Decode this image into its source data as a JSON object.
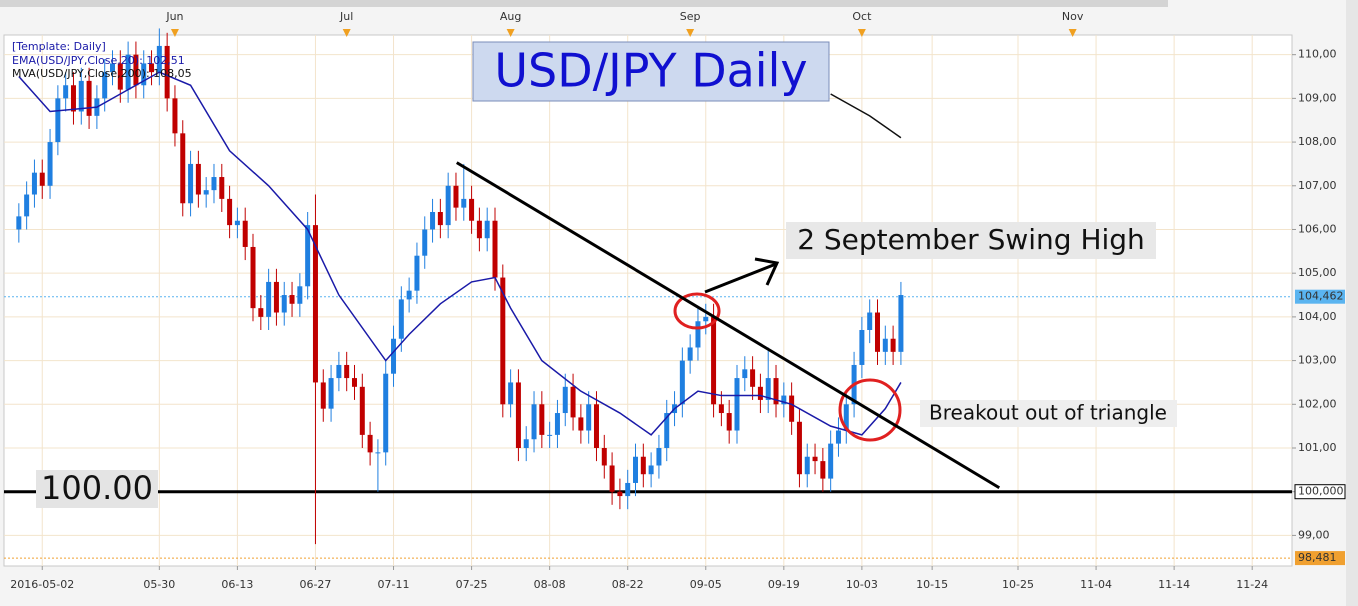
{
  "chart_data": {
    "type": "candlestick",
    "title": "USD/JPY Daily",
    "legend_header": "[Template: Daily]",
    "up_color": "#1f7fe0",
    "down_color": "#c00000",
    "grid": true,
    "xlim": [
      -19.9,
      145.1
    ],
    "ylim": [
      98.3,
      110.45
    ],
    "xticks": [
      {
        "value": -15,
        "label": "2016-05-02"
      },
      {
        "value": 0,
        "label": "05-30"
      },
      {
        "value": 10,
        "label": "06-13"
      },
      {
        "value": 20,
        "label": "06-27"
      },
      {
        "value": 30,
        "label": "07-11"
      },
      {
        "value": 40,
        "label": "07-25"
      },
      {
        "value": 50,
        "label": "08-08"
      },
      {
        "value": 60,
        "label": "08-22"
      },
      {
        "value": 70,
        "label": "09-05"
      },
      {
        "value": 80,
        "label": "09-19"
      },
      {
        "value": 90,
        "label": "10-03"
      },
      {
        "value": 99,
        "label": "10-15"
      },
      {
        "value": 110,
        "label": "10-25"
      },
      {
        "value": 120,
        "label": "11-04"
      },
      {
        "value": 130,
        "label": "11-14"
      },
      {
        "value": 140,
        "label": "11-24"
      }
    ],
    "top_ticks": [
      {
        "value": 2,
        "label": "Jun"
      },
      {
        "value": 24,
        "label": "Jul"
      },
      {
        "value": 45,
        "label": "Aug"
      },
      {
        "value": 68,
        "label": "Sep"
      },
      {
        "value": 90,
        "label": "Oct"
      },
      {
        "value": 117,
        "label": "Nov"
      }
    ],
    "yticks": [
      {
        "value": 99,
        "label": "99,00"
      },
      {
        "value": 100,
        "label": "100,00"
      },
      {
        "value": 101,
        "label": "101,00"
      },
      {
        "value": 102,
        "label": "102,00"
      },
      {
        "value": 103,
        "label": "103,00"
      },
      {
        "value": 104,
        "label": "104,00"
      },
      {
        "value": 105,
        "label": "105,00"
      },
      {
        "value": 106,
        "label": "106,00"
      },
      {
        "value": 107,
        "label": "107,00"
      },
      {
        "value": 108,
        "label": "108,00"
      },
      {
        "value": 109,
        "label": "109,00"
      },
      {
        "value": 110,
        "label": "110,00"
      }
    ],
    "x": [
      -18,
      -17,
      -16,
      -15,
      -14,
      -13,
      -12,
      -11,
      -10,
      -9,
      -8,
      -7,
      -6,
      -5,
      -4,
      -3,
      -2,
      -1,
      0,
      1,
      2,
      3,
      4,
      5,
      6,
      7,
      8,
      9,
      10,
      11,
      12,
      13,
      14,
      15,
      16,
      17,
      18,
      19,
      20,
      21,
      22,
      23,
      24,
      25,
      26,
      27,
      28,
      29,
      30,
      31,
      32,
      33,
      34,
      35,
      36,
      37,
      38,
      39,
      40,
      41,
      42,
      43,
      44,
      45,
      46,
      47,
      48,
      49,
      50,
      51,
      52,
      53,
      54,
      55,
      56,
      57,
      58,
      59,
      60,
      61,
      62,
      63,
      64,
      65,
      66,
      67,
      68,
      69,
      70,
      71,
      72,
      73,
      74,
      75,
      76,
      77,
      78,
      79,
      80,
      81,
      82,
      83,
      84,
      85,
      86,
      87,
      88,
      89,
      90,
      91,
      92,
      93,
      94,
      95
    ],
    "open": [
      106.0,
      106.3,
      106.8,
      107.3,
      107.0,
      108.0,
      109.0,
      109.3,
      108.7,
      109.4,
      108.6,
      109.0,
      109.6,
      109.8,
      109.2,
      110.0,
      109.3,
      109.8,
      109.6,
      110.2,
      109.0,
      108.2,
      106.6,
      107.5,
      106.8,
      106.9,
      107.2,
      106.7,
      106.1,
      106.2,
      105.6,
      104.2,
      104.0,
      104.8,
      104.1,
      104.5,
      104.3,
      104.7,
      106.1,
      102.5,
      101.9,
      102.6,
      102.9,
      102.6,
      102.4,
      101.3,
      100.9,
      100.9,
      102.7,
      103.5,
      104.4,
      104.6,
      105.4,
      106.0,
      106.4,
      106.1,
      107.0,
      106.5,
      106.7,
      106.2,
      105.8,
      106.2,
      104.9,
      102.0,
      102.5,
      101.0,
      101.2,
      102.0,
      101.3,
      101.3,
      101.8,
      102.4,
      101.7,
      101.4,
      102.0,
      101.0,
      100.6,
      100.0,
      99.9,
      100.2,
      100.8,
      100.4,
      100.6,
      101.0,
      101.8,
      102.0,
      103.0,
      103.3,
      103.9,
      104.0,
      102.0,
      101.8,
      101.4,
      102.6,
      102.8,
      102.4,
      102.1,
      102.6,
      102.0,
      102.2,
      101.6,
      100.4,
      100.8,
      100.7,
      100.3,
      101.1,
      101.4,
      102.0,
      102.9,
      103.7,
      104.1,
      103.2,
      103.5,
      103.2
    ],
    "high": [
      106.6,
      107.1,
      107.6,
      107.6,
      108.3,
      109.3,
      109.6,
      109.6,
      109.7,
      109.7,
      109.3,
      109.9,
      110.1,
      110.1,
      110.3,
      110.3,
      110.1,
      110.1,
      110.6,
      110.5,
      109.3,
      108.5,
      107.8,
      107.8,
      107.2,
      107.5,
      107.5,
      107.0,
      106.5,
      106.5,
      105.9,
      104.5,
      105.1,
      105.1,
      104.8,
      104.8,
      105.0,
      106.4,
      106.8,
      102.8,
      102.9,
      103.2,
      103.2,
      102.9,
      102.7,
      101.6,
      101.2,
      103.0,
      103.8,
      104.7,
      104.9,
      105.7,
      106.3,
      106.7,
      106.7,
      107.3,
      107.3,
      107.5,
      107.0,
      106.5,
      106.5,
      106.5,
      105.2,
      102.8,
      102.8,
      101.5,
      102.3,
      102.3,
      101.6,
      102.1,
      102.7,
      102.7,
      102.0,
      102.3,
      102.3,
      101.3,
      100.9,
      100.3,
      100.5,
      101.1,
      101.1,
      100.9,
      101.3,
      102.1,
      102.3,
      103.3,
      103.6,
      104.2,
      104.3,
      104.3,
      102.3,
      102.1,
      102.9,
      103.1,
      103.1,
      102.7,
      103.3,
      102.9,
      102.5,
      102.5,
      101.9,
      101.1,
      101.1,
      101.0,
      101.4,
      101.7,
      102.3,
      103.2,
      104.0,
      104.4,
      104.4,
      103.8,
      103.8,
      104.8
    ],
    "low": [
      105.7,
      106.0,
      106.5,
      106.7,
      106.7,
      107.7,
      108.7,
      108.4,
      108.4,
      108.3,
      108.3,
      108.7,
      109.3,
      108.9,
      108.9,
      109.0,
      109.0,
      109.3,
      109.3,
      108.7,
      107.9,
      106.3,
      106.3,
      106.5,
      106.5,
      106.6,
      106.4,
      105.8,
      105.8,
      105.3,
      103.9,
      103.7,
      103.7,
      103.8,
      103.8,
      104.0,
      104.0,
      104.4,
      98.8,
      101.6,
      101.6,
      102.3,
      102.3,
      102.1,
      101.0,
      100.6,
      100.0,
      100.6,
      102.4,
      103.2,
      104.1,
      104.3,
      105.1,
      105.7,
      105.8,
      105.8,
      106.2,
      106.2,
      105.9,
      105.5,
      105.5,
      104.6,
      101.7,
      101.7,
      100.7,
      100.7,
      100.9,
      101.0,
      101.0,
      101.0,
      101.5,
      101.4,
      101.1,
      101.1,
      100.7,
      100.3,
      99.7,
      99.6,
      99.6,
      99.9,
      100.1,
      100.1,
      100.3,
      100.7,
      101.5,
      101.7,
      102.7,
      103.0,
      103.6,
      101.7,
      101.5,
      101.1,
      101.1,
      102.3,
      102.1,
      101.8,
      101.8,
      101.7,
      101.7,
      101.3,
      100.1,
      100.1,
      100.4,
      100.0,
      100.0,
      100.8,
      101.1,
      101.7,
      102.6,
      103.4,
      102.9,
      102.9,
      102.9,
      102.9
    ],
    "close": [
      106.3,
      106.8,
      107.3,
      107.0,
      108.0,
      109.0,
      109.3,
      108.7,
      109.4,
      108.6,
      109.0,
      109.6,
      109.8,
      109.2,
      110.0,
      109.3,
      109.8,
      109.6,
      110.2,
      109.0,
      108.2,
      106.6,
      107.5,
      106.8,
      106.9,
      107.2,
      106.7,
      106.1,
      106.2,
      105.6,
      104.2,
      104.0,
      104.8,
      104.1,
      104.5,
      104.3,
      104.7,
      106.1,
      102.5,
      101.9,
      102.6,
      102.9,
      102.6,
      102.4,
      101.3,
      100.9,
      100.9,
      102.7,
      103.5,
      104.4,
      104.6,
      105.4,
      106.0,
      106.4,
      106.1,
      107.0,
      106.5,
      106.7,
      106.2,
      105.8,
      106.2,
      104.9,
      102.0,
      102.5,
      101.0,
      101.2,
      102.0,
      101.3,
      101.3,
      101.8,
      102.4,
      101.7,
      101.4,
      102.0,
      101.0,
      100.6,
      100.0,
      99.9,
      100.2,
      100.8,
      100.4,
      100.6,
      101.0,
      101.8,
      102.0,
      103.0,
      103.3,
      103.9,
      104.0,
      102.0,
      101.8,
      101.4,
      102.6,
      102.8,
      102.4,
      102.1,
      102.6,
      102.0,
      102.2,
      101.6,
      100.4,
      100.8,
      100.7,
      100.3,
      101.1,
      101.4,
      102.0,
      102.9,
      103.7,
      104.1,
      103.2,
      103.5,
      103.2,
      104.5
    ],
    "lines": [
      {
        "name": "EMA(USD/JPY,Close,20): 102,51",
        "color": "#1a1aa8",
        "x": [
          -18,
          -14,
          -8,
          0,
          4,
          9,
          14,
          19,
          23,
          29,
          32,
          36,
          40,
          43,
          45,
          49,
          54,
          59,
          63,
          66,
          69,
          72,
          77,
          81,
          86,
          90,
          93,
          95
        ],
        "values": [
          109.5,
          108.7,
          108.8,
          109.6,
          109.3,
          107.8,
          107.0,
          106.0,
          104.5,
          103.0,
          103.6,
          104.3,
          104.8,
          104.9,
          104.2,
          103.0,
          102.3,
          101.8,
          101.3,
          101.9,
          102.3,
          102.2,
          102.2,
          102.0,
          101.5,
          101.3,
          101.9,
          102.5
        ]
      },
      {
        "name": "MVA(USD/JPY,Close,200): 108,05",
        "color": "#111111",
        "x": [
          86,
          91,
          95
        ],
        "values": [
          109.1,
          108.6,
          108.1
        ]
      }
    ],
    "trendline": {
      "x": [
        38.1,
        107.6
      ],
      "values": [
        107.53,
        100.09
      ]
    },
    "level": {
      "value": 100,
      "label": "100.00",
      "tag": "100,000"
    },
    "price_tags": [
      {
        "value": 104.462,
        "label": "104,462",
        "color": "#5ab4f0"
      },
      {
        "value": 98.481,
        "label": "98,481",
        "color": "#f0a030"
      }
    ],
    "annotations": [
      "2 September Swing High",
      "Breakout out of triangle"
    ]
  }
}
